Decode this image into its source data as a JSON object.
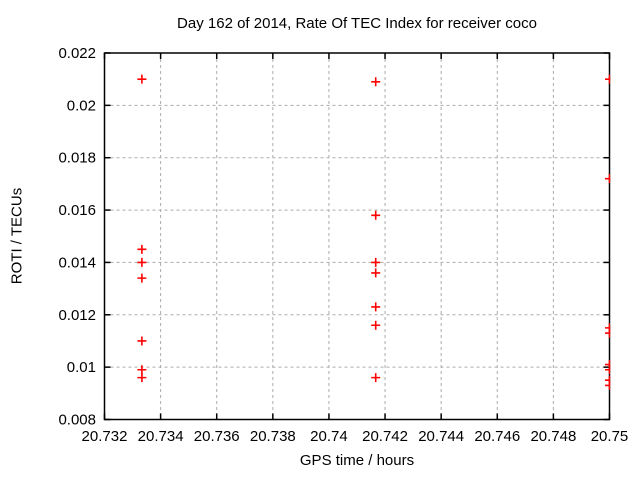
{
  "chart_data": {
    "type": "scatter",
    "title": "Day 162 of 2014, Rate Of TEC Index for receiver coco",
    "xlabel": "GPS time / hours",
    "ylabel": "ROTI / TECUs",
    "xlim": [
      20.732,
      20.75
    ],
    "ylim": [
      0.008,
      0.022
    ],
    "grid": "dashed",
    "legend": "none",
    "marker": {
      "shape": "plus",
      "size": 9,
      "color": "#ff0000"
    },
    "colors": {
      "marker": "#ff0000",
      "grid": "#ababab",
      "frame": "#000000"
    },
    "xticks": [
      {
        "v": 20.732,
        "label": "20.732"
      },
      {
        "v": 20.734,
        "label": "20.734"
      },
      {
        "v": 20.736,
        "label": "20.736"
      },
      {
        "v": 20.738,
        "label": "20.738"
      },
      {
        "v": 20.74,
        "label": "20.74"
      },
      {
        "v": 20.742,
        "label": "20.742"
      },
      {
        "v": 20.744,
        "label": "20.744"
      },
      {
        "v": 20.746,
        "label": "20.746"
      },
      {
        "v": 20.748,
        "label": "20.748"
      },
      {
        "v": 20.75,
        "label": "20.75"
      }
    ],
    "yticks": [
      {
        "v": 0.008,
        "label": "0.008"
      },
      {
        "v": 0.01,
        "label": "0.01"
      },
      {
        "v": 0.012,
        "label": "0.012"
      },
      {
        "v": 0.014,
        "label": "0.014"
      },
      {
        "v": 0.016,
        "label": "0.016"
      },
      {
        "v": 0.018,
        "label": "0.018"
      },
      {
        "v": 0.02,
        "label": "0.02"
      },
      {
        "v": 0.022,
        "label": "0.022"
      }
    ],
    "series": [
      {
        "name": "ROTI",
        "points": [
          [
            20.733333,
            0.021
          ],
          [
            20.733333,
            0.0145
          ],
          [
            20.733333,
            0.014
          ],
          [
            20.733333,
            0.0134
          ],
          [
            20.733333,
            0.011
          ],
          [
            20.733333,
            0.0099
          ],
          [
            20.733333,
            0.0096
          ],
          [
            20.741667,
            0.0209
          ],
          [
            20.741667,
            0.0158
          ],
          [
            20.741667,
            0.014
          ],
          [
            20.741667,
            0.0136
          ],
          [
            20.741667,
            0.0123
          ],
          [
            20.741667,
            0.0116
          ],
          [
            20.741667,
            0.0096
          ],
          [
            20.75,
            0.021
          ],
          [
            20.75,
            0.0172
          ],
          [
            20.75,
            0.0115
          ],
          [
            20.75,
            0.0113
          ],
          [
            20.75,
            0.0101
          ],
          [
            20.75,
            0.0099
          ],
          [
            20.75,
            0.0095
          ],
          [
            20.75,
            0.0093
          ]
        ]
      }
    ]
  }
}
